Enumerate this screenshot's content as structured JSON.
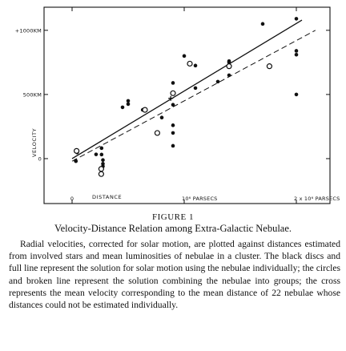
{
  "chart_data": {
    "type": "scatter",
    "title": "",
    "xlabel": "DISTANCE",
    "ylabel": "VELOCITY",
    "x_ticks": [
      {
        "value": 0,
        "label": "0"
      },
      {
        "value": 1000000,
        "label": "10⁶ PARSECS"
      },
      {
        "value": 2000000,
        "label": "2 x 10⁶ PARSECS"
      }
    ],
    "y_ticks": [
      {
        "value": 0,
        "label": "0"
      },
      {
        "value": 500,
        "label": "500KM"
      },
      {
        "value": 1000,
        "label": "+1000KM"
      }
    ],
    "xlim": [
      -250000,
      2300000
    ],
    "ylim": [
      -350,
      1180
    ],
    "grid": false,
    "series": [
      {
        "marker": "filled-disc",
        "points": [
          [
            32000,
            -16
          ],
          [
            34000,
            -20
          ],
          [
            214000,
            33
          ],
          [
            263000,
            82
          ],
          [
            263000,
            32
          ],
          [
            275000,
            -11
          ],
          [
            275000,
            -40
          ],
          [
            275000,
            -60
          ],
          [
            45000,
            48
          ],
          [
            450000,
            400
          ],
          [
            500000,
            450
          ],
          [
            500000,
            425
          ],
          [
            630000,
            380
          ],
          [
            800000,
            320
          ],
          [
            900000,
            420
          ],
          [
            900000,
            590
          ],
          [
            900000,
            260
          ],
          [
            900000,
            200
          ],
          [
            900000,
            100
          ],
          [
            1000000,
            800
          ],
          [
            1100000,
            725
          ],
          [
            1300000,
            600
          ],
          [
            1400000,
            650
          ],
          [
            1400000,
            750
          ],
          [
            1700000,
            1050
          ],
          [
            2000000,
            1090
          ],
          [
            2000000,
            810
          ],
          [
            2000000,
            840
          ],
          [
            2000000,
            500
          ],
          [
            1100000,
            550
          ],
          [
            1400000,
            760
          ]
        ]
      },
      {
        "marker": "open-circle",
        "points": [
          [
            40000,
            60
          ],
          [
            260000,
            -80
          ],
          [
            260000,
            -120
          ],
          [
            650000,
            380
          ],
          [
            760000,
            200
          ],
          [
            900000,
            510
          ],
          [
            1050000,
            740
          ],
          [
            1400000,
            720
          ],
          [
            1760000,
            720
          ]
        ]
      },
      {
        "marker": "cross",
        "points": [
          [
            880000,
            470
          ]
        ]
      }
    ],
    "fit_lines": [
      {
        "style": "solid",
        "from": [
          0,
          0
        ],
        "to": [
          2050000,
          1080
        ]
      },
      {
        "style": "dashed",
        "from": [
          0,
          -20
        ],
        "to": [
          2170000,
          1000
        ]
      }
    ]
  },
  "figure": {
    "label": "FIGURE 1",
    "title": "Velocity-Distance Relation among Extra-Galactic Nebulae.",
    "caption": "Radial velocities, corrected for solar motion, are plotted against distances estimated from involved stars and mean luminosities of nebulae in a cluster. The black discs and full line represent the solution for solar motion using the nebulae individually; the circles and broken line represent the solution combining the nebulae into groups; the cross represents the mean velocity corresponding to the mean distance of 22 nebulae whose distances could not be estimated individually."
  }
}
